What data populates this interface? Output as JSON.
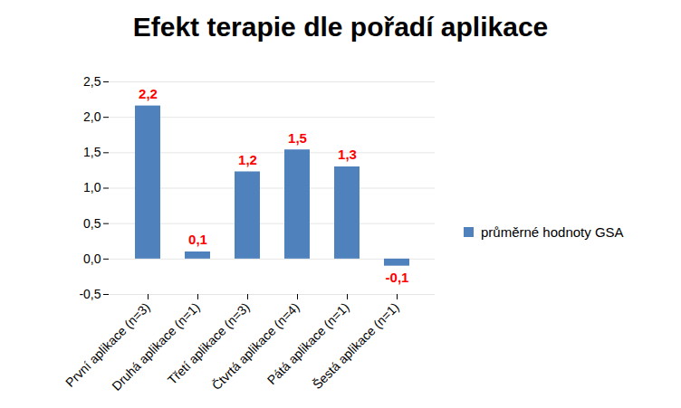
{
  "chart_data": {
    "type": "bar",
    "title": "Efekt terapie dle pořadí aplikace",
    "categories": [
      "První aplikace (n=3)",
      "Druhá aplikace (n=1)",
      "Třetí aplikace (n=3)",
      "Čtvrtá aplikace (n=4)",
      "Pátá aplikace (n=1)",
      "Šestá aplikace (n=1)"
    ],
    "series": [
      {
        "name": "průměrné hodnoty GSA",
        "color": "#4f81bd",
        "values": [
          2.16,
          0.1,
          1.23,
          1.54,
          1.3,
          -0.1
        ],
        "value_labels": [
          "2,2",
          "0,1",
          "1,2",
          "1,5",
          "1,3",
          "-0,1"
        ]
      }
    ],
    "ylim": [
      -0.5,
      2.5
    ],
    "yticks": [
      {
        "value": -0.5,
        "label": "-0,5"
      },
      {
        "value": 0,
        "label": "0,0"
      },
      {
        "value": 0.5,
        "label": "0,5"
      },
      {
        "value": 1,
        "label": "1,0"
      },
      {
        "value": 1.5,
        "label": "1,5"
      },
      {
        "value": 2,
        "label": "2,0"
      },
      {
        "value": 2.5,
        "label": "2,5"
      }
    ],
    "grid": true,
    "legend": "right",
    "data_labels": true
  }
}
